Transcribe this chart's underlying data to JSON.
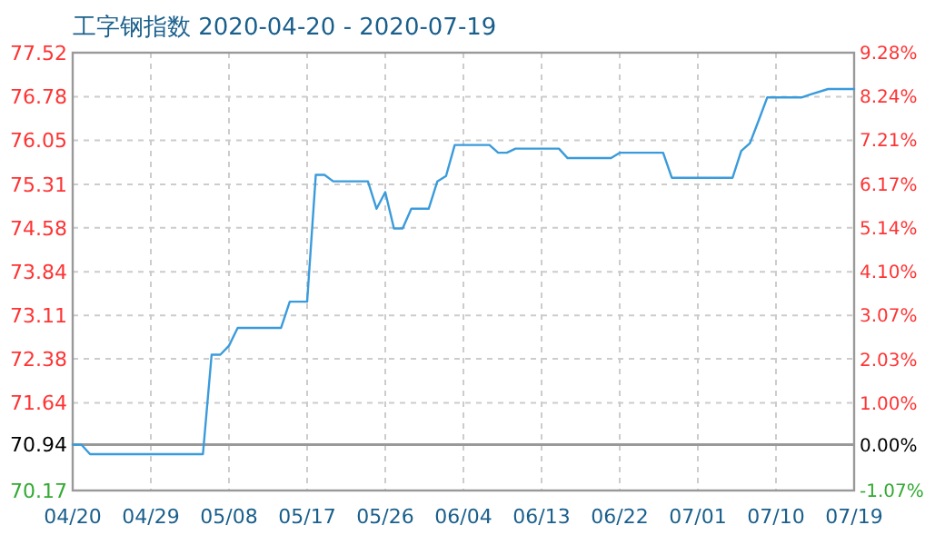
{
  "chart_data": {
    "type": "line",
    "title": "工字钢指数 2020-04-20 - 2020-07-19",
    "x": [
      "2020-04-20",
      "2020-04-21",
      "2020-04-22",
      "2020-05-05",
      "2020-05-06",
      "2020-05-07",
      "2020-05-08",
      "2020-05-09",
      "2020-05-14",
      "2020-05-15",
      "2020-05-17",
      "2020-05-18",
      "2020-05-19",
      "2020-05-20",
      "2020-05-24",
      "2020-05-25",
      "2020-05-26",
      "2020-05-27",
      "2020-05-28",
      "2020-05-29",
      "2020-05-31",
      "2020-06-01",
      "2020-06-02",
      "2020-06-03",
      "2020-06-07",
      "2020-06-08",
      "2020-06-09",
      "2020-06-10",
      "2020-06-15",
      "2020-06-16",
      "2020-06-21",
      "2020-06-22",
      "2020-06-27",
      "2020-06-28",
      "2020-07-05",
      "2020-07-06",
      "2020-07-07",
      "2020-07-08",
      "2020-07-09",
      "2020-07-13",
      "2020-07-14",
      "2020-07-16",
      "2020-07-19"
    ],
    "series": [
      {
        "color": "#3a9bdc",
        "values": [
          70.94,
          70.94,
          70.78,
          70.78,
          72.45,
          72.45,
          72.6,
          72.9,
          72.9,
          73.34,
          73.34,
          75.47,
          75.47,
          75.36,
          75.36,
          74.9,
          75.18,
          74.57,
          74.57,
          74.9,
          74.9,
          75.36,
          75.45,
          75.97,
          75.97,
          75.84,
          75.84,
          75.91,
          75.91,
          75.75,
          75.75,
          75.84,
          75.84,
          75.42,
          75.42,
          75.87,
          76.0,
          76.38,
          76.77,
          76.77,
          76.82,
          76.91,
          76.91
        ]
      }
    ],
    "xlim": [
      "2020-04-20",
      "2020-07-19"
    ],
    "xticks": [
      {
        "value": "2020-04-20",
        "label": "04/20"
      },
      {
        "value": "2020-04-29",
        "label": "04/29"
      },
      {
        "value": "2020-05-08",
        "label": "05/08"
      },
      {
        "value": "2020-05-17",
        "label": "05/17"
      },
      {
        "value": "2020-05-26",
        "label": "05/26"
      },
      {
        "value": "2020-06-04",
        "label": "06/04"
      },
      {
        "value": "2020-06-13",
        "label": "06/13"
      },
      {
        "value": "2020-06-22",
        "label": "06/22"
      },
      {
        "value": "2020-07-01",
        "label": "07/01"
      },
      {
        "value": "2020-07-10",
        "label": "07/10"
      },
      {
        "value": "2020-07-19",
        "label": "07/19"
      }
    ],
    "ylim": [
      70.17,
      77.52
    ],
    "yticks": [
      70.17,
      70.94,
      71.64,
      72.38,
      73.11,
      73.84,
      74.58,
      75.31,
      76.05,
      76.78,
      77.52
    ],
    "y2lim": [
      -1.07,
      9.28
    ],
    "y2ticks": [
      {
        "value": -1.07,
        "label": "-1.07%"
      },
      {
        "value": 0,
        "label": "0.00%"
      },
      {
        "value": 1,
        "label": "1.00%"
      },
      {
        "value": 2.03,
        "label": "2.03%"
      },
      {
        "value": 3.07,
        "label": "3.07%"
      },
      {
        "value": 4.1,
        "label": "4.10%"
      },
      {
        "value": 5.14,
        "label": "5.14%"
      },
      {
        "value": 6.17,
        "label": "6.17%"
      },
      {
        "value": 7.21,
        "label": "7.21%"
      },
      {
        "value": 8.24,
        "label": "8.24%"
      },
      {
        "value": 9.28,
        "label": "9.28%"
      }
    ],
    "ref_lines": [
      {
        "axis": "y",
        "value": 70.94,
        "color": "#999999"
      }
    ],
    "grid": true,
    "marker": "none",
    "line_style": "solid"
  }
}
